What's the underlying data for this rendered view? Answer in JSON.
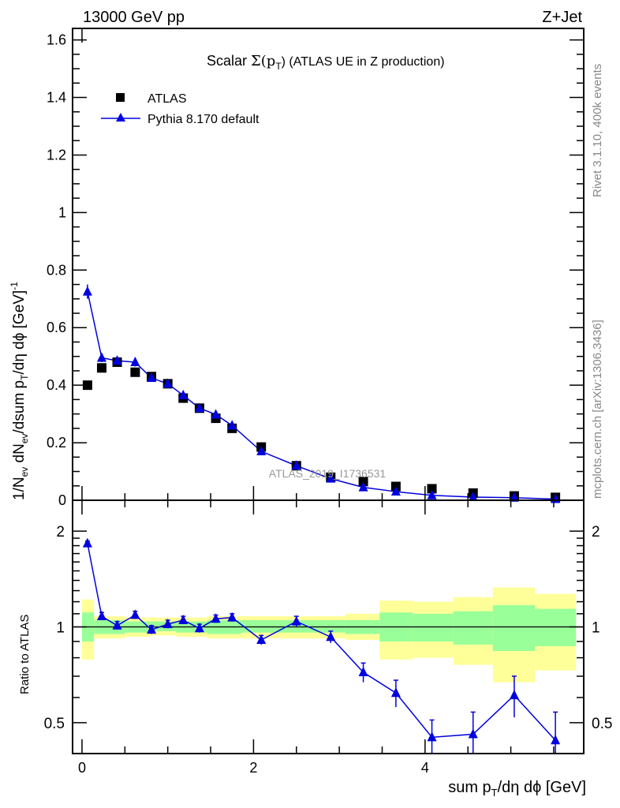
{
  "header": {
    "left": "13000 GeV pp",
    "right": "Z+Jet"
  },
  "side_labels": {
    "rivet": "Rivet 3.1.10,  400k events",
    "mcplots": "mcplots.cern.ch [arXiv:1306.3436]"
  },
  "watermark": "ATLAS_2019_I1736531",
  "colors": {
    "data": "#000000",
    "mc": "#0000e0",
    "band_green": "#99ff99",
    "band_yellow": "#ffff99"
  },
  "chart_data": [
    {
      "type": "scatter",
      "title_prefix": "Scalar ",
      "title_sigma": "Σ(p",
      "title_sub": "T",
      "title_suffix": ")  (ATLAS UE in Z production)",
      "ylabel": "1/N_ev dN_ev/dsum p_T/dη dϕ [GeV]^-1",
      "ylabel_parts": {
        "a": "1/N",
        "ev1": "ev",
        "b": " dN",
        "ev2": "ev",
        "c": "/dsum p",
        "t": "T",
        "d": "/dη dϕ  [GeV]",
        "sup": "-1"
      },
      "xlim": [
        -0.11,
        5.85
      ],
      "ylim": [
        0,
        1.64
      ],
      "yticks": [
        "0",
        "0.2",
        "0.4",
        "0.6",
        "0.8",
        "1",
        "1.2",
        "1.4",
        "1.6"
      ],
      "legend": [
        {
          "name": "ATLAS",
          "marker": "square"
        },
        {
          "name": "Pythia 8.170 default",
          "marker": "triangle"
        }
      ],
      "legend_position": "top-left",
      "x": [
        0.064,
        0.23,
        0.41,
        0.62,
        0.81,
        1.0,
        1.18,
        1.37,
        1.56,
        1.75,
        2.09,
        2.5,
        2.9,
        3.28,
        3.66,
        4.08,
        4.56,
        5.04,
        5.52
      ],
      "series": [
        {
          "name": "ATLAS",
          "values": [
            0.4,
            0.46,
            0.48,
            0.445,
            0.43,
            0.405,
            0.355,
            0.32,
            0.285,
            0.25,
            0.185,
            0.12,
            0.08,
            0.065,
            0.048,
            0.04,
            0.025,
            0.015,
            0.01
          ]
        },
        {
          "name": "Pythia 8.170 default",
          "values": [
            0.725,
            0.495,
            0.485,
            0.48,
            0.425,
            0.405,
            0.365,
            0.32,
            0.298,
            0.26,
            0.17,
            0.12,
            0.075,
            0.045,
            0.03,
            0.017,
            0.011,
            0.009,
            0.004
          ],
          "errors": [
            0.025,
            0.015,
            0.015,
            0.015,
            0.012,
            0.012,
            0.012,
            0.01,
            0.01,
            0.01,
            0.008,
            0.006,
            0.005,
            0.004,
            0.003,
            0.002,
            0.002,
            0.002,
            0.001
          ]
        }
      ]
    },
    {
      "type": "scatter",
      "ylabel": "Ratio to ATLAS",
      "xlabel_parts": {
        "a": "sum p",
        "t": "T",
        "b": "/dη dϕ [GeV]"
      },
      "yscale": "log",
      "ylim": [
        0.4,
        2.5
      ],
      "yticks": [
        {
          "v": 0.5,
          "label": "0.5"
        },
        {
          "v": 1,
          "label": "1"
        },
        {
          "v": 2,
          "label": "2"
        }
      ],
      "xticks": [
        {
          "v": 0,
          "label": "0"
        },
        {
          "v": 2,
          "label": "2"
        },
        {
          "v": 4,
          "label": "4"
        }
      ],
      "x": [
        0.064,
        0.23,
        0.41,
        0.62,
        0.81,
        1.0,
        1.18,
        1.37,
        1.56,
        1.75,
        2.09,
        2.5,
        2.9,
        3.28,
        3.66,
        4.08,
        4.56,
        5.04,
        5.52
      ],
      "ratio": [
        1.83,
        1.08,
        1.01,
        1.09,
        0.98,
        1.02,
        1.05,
        0.99,
        1.06,
        1.07,
        0.91,
        1.04,
        0.93,
        0.72,
        0.62,
        0.45,
        0.46,
        0.61,
        0.44
      ],
      "ratio_errors": [
        0.03,
        0.03,
        0.03,
        0.03,
        0.03,
        0.03,
        0.03,
        0.03,
        0.03,
        0.03,
        0.03,
        0.04,
        0.04,
        0.05,
        0.06,
        0.06,
        0.08,
        0.09,
        0.1
      ],
      "bands": [
        {
          "x0": 0.0,
          "x1": 0.14,
          "y": [
            0.79,
            1.22
          ],
          "g": [
            0.9,
            1.11
          ]
        },
        {
          "x0": 0.14,
          "x1": 0.5,
          "y": [
            0.92,
            1.08
          ],
          "g": [
            0.95,
            1.05
          ]
        },
        {
          "x0": 0.5,
          "x1": 0.8,
          "y": [
            0.93,
            1.07
          ],
          "g": [
            0.96,
            1.04
          ]
        },
        {
          "x0": 0.8,
          "x1": 1.1,
          "y": [
            0.94,
            1.07
          ],
          "g": [
            0.97,
            1.04
          ]
        },
        {
          "x0": 1.1,
          "x1": 1.46,
          "y": [
            0.93,
            1.07
          ],
          "g": [
            0.96,
            1.04
          ]
        },
        {
          "x0": 1.46,
          "x1": 1.86,
          "y": [
            0.92,
            1.08
          ],
          "g": [
            0.95,
            1.05
          ]
        },
        {
          "x0": 1.86,
          "x1": 3.07,
          "y": [
            0.92,
            1.08
          ],
          "g": [
            0.96,
            1.05
          ]
        },
        {
          "x0": 3.07,
          "x1": 3.47,
          "y": [
            0.91,
            1.1
          ],
          "g": [
            0.95,
            1.05
          ]
        },
        {
          "x0": 3.47,
          "x1": 3.86,
          "y": [
            0.79,
            1.21
          ],
          "g": [
            0.9,
            1.11
          ]
        },
        {
          "x0": 3.86,
          "x1": 4.33,
          "y": [
            0.8,
            1.2
          ],
          "g": [
            0.9,
            1.1
          ]
        },
        {
          "x0": 4.33,
          "x1": 4.79,
          "y": [
            0.76,
            1.24
          ],
          "g": [
            0.88,
            1.12
          ]
        },
        {
          "x0": 4.79,
          "x1": 5.28,
          "y": [
            0.67,
            1.33
          ],
          "g": [
            0.84,
            1.17
          ]
        },
        {
          "x0": 5.28,
          "x1": 5.76,
          "y": [
            0.73,
            1.27
          ],
          "g": [
            0.87,
            1.14
          ]
        }
      ]
    }
  ]
}
